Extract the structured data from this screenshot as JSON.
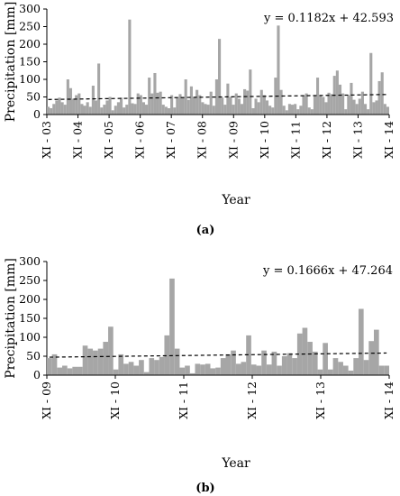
{
  "chart_data": [
    {
      "type": "bar",
      "caption": "(a)",
      "xlabel": "Year",
      "ylabel": "Precipitation [mm]",
      "ylim": [
        0,
        300
      ],
      "yticks": [
        0,
        50,
        100,
        150,
        200,
        250,
        300
      ],
      "xticks": [
        "XI - 03",
        "XI - 04",
        "XI - 05",
        "XI - 06",
        "XI - 07",
        "XI - 08",
        "XI - 09",
        "XI - 10",
        "XI - 11",
        "XI - 12",
        "XI - 13",
        "XI - 14"
      ],
      "trendline": {
        "equation": "y = 0.1182x + 42.593",
        "slope": 0.1182,
        "intercept": 42.593
      },
      "bar_color": "#a6a6a6",
      "values": [
        22,
        18,
        30,
        40,
        48,
        35,
        28,
        100,
        75,
        45,
        55,
        60,
        30,
        25,
        35,
        22,
        82,
        40,
        145,
        20,
        28,
        40,
        50,
        12,
        25,
        35,
        48,
        20,
        28,
        270,
        32,
        30,
        60,
        55,
        35,
        28,
        105,
        60,
        118,
        62,
        65,
        28,
        22,
        18,
        55,
        20,
        50,
        58,
        48,
        100,
        42,
        80,
        48,
        70,
        55,
        35,
        30,
        28,
        65,
        25,
        100,
        215,
        48,
        28,
        88,
        50,
        28,
        60,
        45,
        30,
        72,
        68,
        128,
        18,
        45,
        35,
        70,
        55,
        40,
        25,
        20,
        105,
        253,
        70,
        25,
        12,
        30,
        28,
        30,
        15,
        25,
        55,
        60,
        20,
        15,
        55,
        105,
        55,
        50,
        35,
        62,
        58,
        110,
        125,
        85,
        60,
        15,
        55,
        90,
        42,
        30,
        45,
        65,
        30,
        15,
        175,
        35,
        40,
        95,
        120,
        30,
        22
      ]
    },
    {
      "type": "bar",
      "caption": "(b)",
      "xlabel": "Year",
      "ylabel": "Precipitation [mm]",
      "ylim": [
        0,
        300
      ],
      "yticks": [
        0,
        50,
        100,
        150,
        200,
        250,
        300
      ],
      "xticks": [
        "XI - 09",
        "XI - 10",
        "XI - 11",
        "XI - 12",
        "XI - 13",
        "XI - 14"
      ],
      "trendline": {
        "equation": "y = 0.1666x + 47.264",
        "slope": 0.1666,
        "intercept": 47.264
      },
      "bar_color": "#a6a6a6",
      "values": [
        45,
        55,
        20,
        25,
        18,
        22,
        22,
        78,
        70,
        65,
        70,
        88,
        128,
        15,
        55,
        30,
        35,
        25,
        40,
        8,
        45,
        40,
        48,
        105,
        255,
        70,
        20,
        25,
        5,
        30,
        28,
        30,
        18,
        20,
        45,
        55,
        65,
        30,
        35,
        105,
        28,
        25,
        65,
        28,
        62,
        25,
        50,
        58,
        45,
        110,
        125,
        88,
        62,
        15,
        85,
        15,
        45,
        35,
        25,
        12,
        45,
        175,
        40,
        90,
        120,
        25,
        25
      ]
    }
  ]
}
